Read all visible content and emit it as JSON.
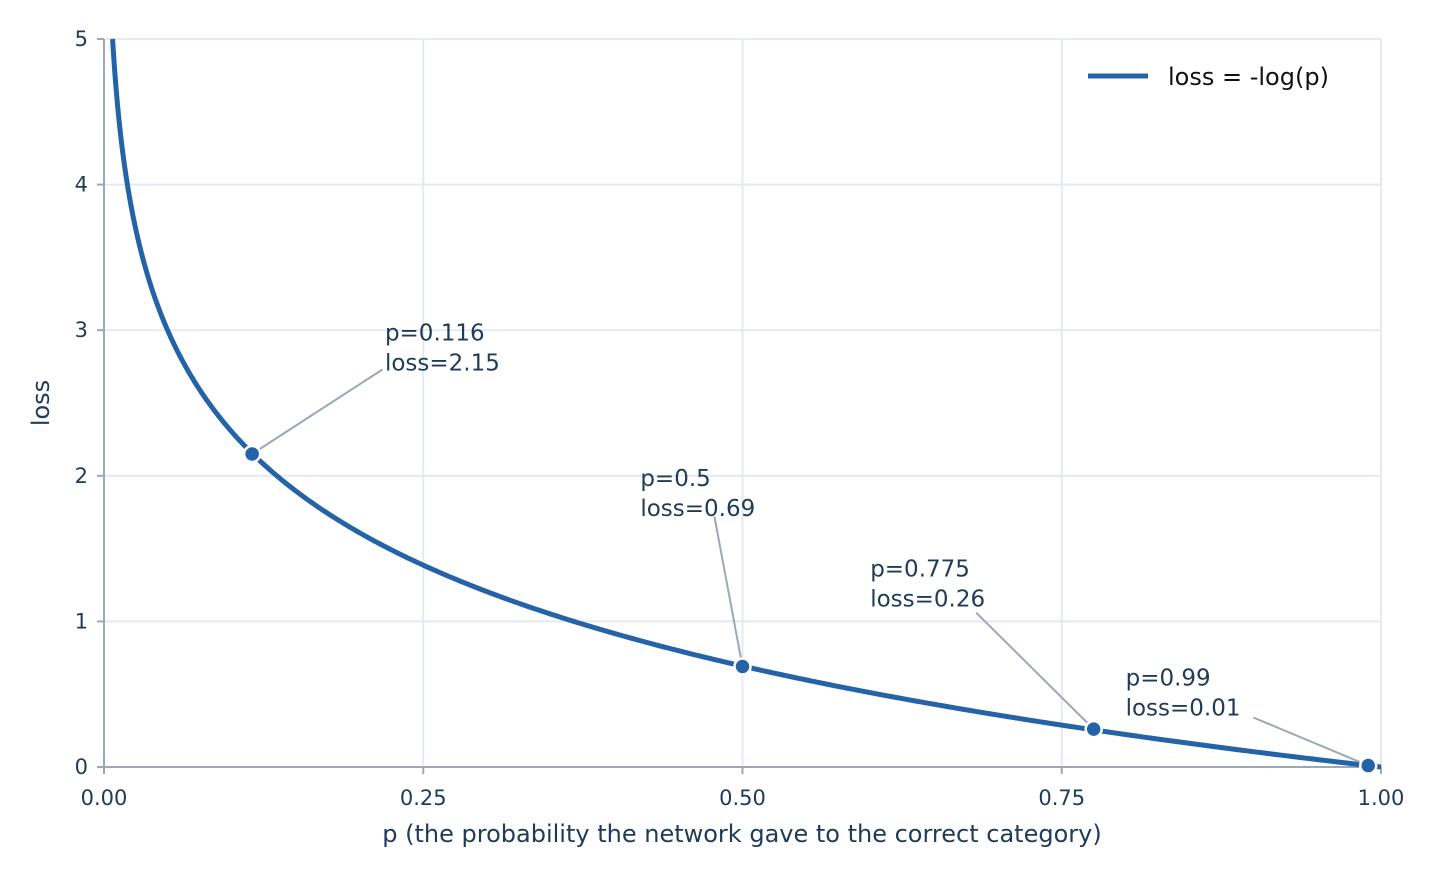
{
  "chart_data": {
    "type": "line",
    "xlabel": "p  (the probability the network gave to the correct category)",
    "ylabel": "loss",
    "xlim": [
      0,
      1
    ],
    "ylim": [
      0,
      5
    ],
    "x_ticks": [
      "0.00",
      "0.25",
      "0.50",
      "0.75",
      "1.00"
    ],
    "y_ticks": [
      "0",
      "1",
      "2",
      "3",
      "4",
      "5"
    ],
    "grid": true,
    "legend_position": "top-right",
    "series": [
      {
        "name": "loss = -log(p)",
        "function": "-log(p)",
        "color": "#2563a8"
      }
    ],
    "points": [
      {
        "p": 0.116,
        "loss": 2.15,
        "label_p": "p=0.116",
        "label_loss": "loss=2.15"
      },
      {
        "p": 0.5,
        "loss": 0.69,
        "label_p": "p=0.5",
        "label_loss": "loss=0.69"
      },
      {
        "p": 0.775,
        "loss": 0.26,
        "label_p": "p=0.775",
        "label_loss": "loss=0.26"
      },
      {
        "p": 0.99,
        "loss": 0.01,
        "label_p": "p=0.99",
        "label_loss": "loss=0.01"
      }
    ]
  },
  "colors": {
    "line": "#2563a8",
    "grid": "#e4e9f2",
    "axis": "#9aa8b8",
    "text": "#1f3b57",
    "leader": "#9aa8b8"
  }
}
